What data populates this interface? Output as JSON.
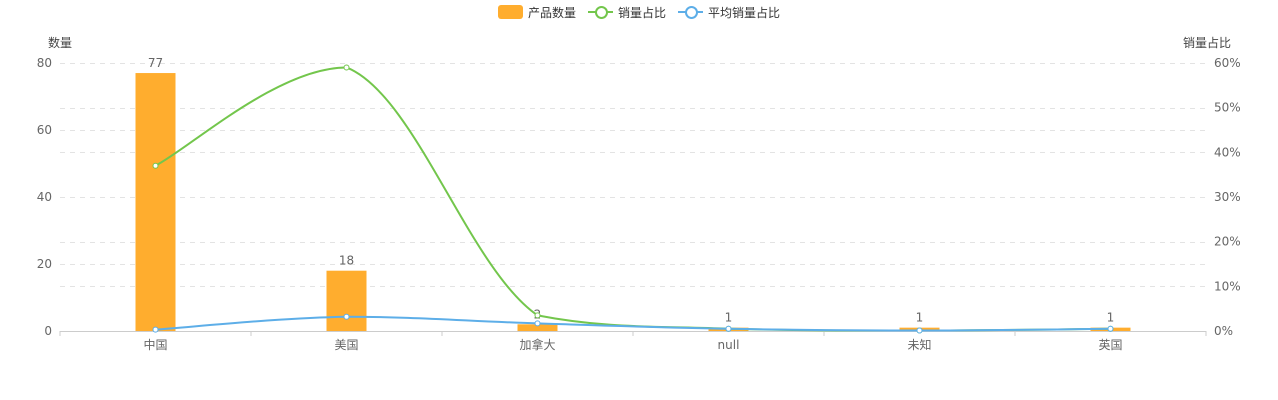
{
  "legend": {
    "items": [
      {
        "label": "产品数量",
        "color": "#FFAD2E",
        "kind": "bar"
      },
      {
        "label": "销量占比",
        "color": "#73C64C",
        "kind": "line"
      },
      {
        "label": "平均销量占比",
        "color": "#5DAEE8",
        "kind": "line"
      }
    ]
  },
  "chart_data": {
    "type": "bar",
    "categories": [
      "中国",
      "美国",
      "加拿大",
      "null",
      "未知",
      "英国"
    ],
    "series": [
      {
        "name": "产品数量",
        "type": "bar",
        "axis": "left",
        "values": [
          77,
          18,
          2,
          1,
          1,
          1
        ],
        "color": "#FFAD2E"
      },
      {
        "name": "销量占比",
        "type": "line",
        "axis": "right",
        "smooth": true,
        "values": [
          37,
          59,
          3.5,
          0.5,
          0.1,
          0.5
        ],
        "color": "#73C64C"
      },
      {
        "name": "平均销量占比",
        "type": "line",
        "axis": "right",
        "smooth": true,
        "values": [
          0.3,
          3.2,
          1.7,
          0.5,
          0.1,
          0.5
        ],
        "color": "#5DAEE8"
      }
    ],
    "left_axis": {
      "label": "数量",
      "min": 0,
      "max": 80,
      "ticks": [
        "0",
        "20",
        "40",
        "60",
        "80"
      ]
    },
    "right_axis": {
      "label": "销量占比",
      "min": 0,
      "max": 60,
      "ticks": [
        "0%",
        "10%",
        "20%",
        "30%",
        "40%",
        "50%",
        "60%"
      ]
    },
    "grid": true,
    "legend_position": "top-center"
  }
}
